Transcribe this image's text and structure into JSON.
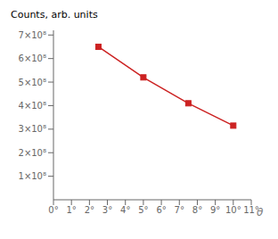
{
  "chart_data": {
    "type": "line",
    "xlabel": "θ",
    "ylabel": "Counts, arb. units",
    "x": [
      2.5,
      5.0,
      7.5,
      10.0
    ],
    "values": [
      650000000,
      520000000,
      410000000,
      315000000
    ],
    "color": "#cc2222",
    "marker": "square",
    "line_style": "solid",
    "xlim": [
      0,
      11
    ],
    "ylim": [
      0,
      720000000
    ],
    "xticks": [
      {
        "value": 0,
        "label": "0°"
      },
      {
        "value": 1,
        "label": "1°"
      },
      {
        "value": 2,
        "label": "2°"
      },
      {
        "value": 3,
        "label": "3°"
      },
      {
        "value": 4,
        "label": "4°"
      },
      {
        "value": 5,
        "label": "5°"
      },
      {
        "value": 6,
        "label": "6°"
      },
      {
        "value": 7,
        "label": "7°"
      },
      {
        "value": 8,
        "label": "8°"
      },
      {
        "value": 9,
        "label": "9°"
      },
      {
        "value": 10,
        "label": "10°"
      },
      {
        "value": 11,
        "label": "11°"
      }
    ],
    "yticks": [
      {
        "value": 100000000,
        "label": "1×10⁸"
      },
      {
        "value": 200000000,
        "label": "2×10⁸"
      },
      {
        "value": 300000000,
        "label": "3×10⁸"
      },
      {
        "value": 400000000,
        "label": "4×10⁸"
      },
      {
        "value": 500000000,
        "label": "5×10⁸"
      },
      {
        "value": 600000000,
        "label": "6×10⁸"
      },
      {
        "value": 700000000,
        "label": "7×10⁸"
      }
    ],
    "grid": false
  }
}
